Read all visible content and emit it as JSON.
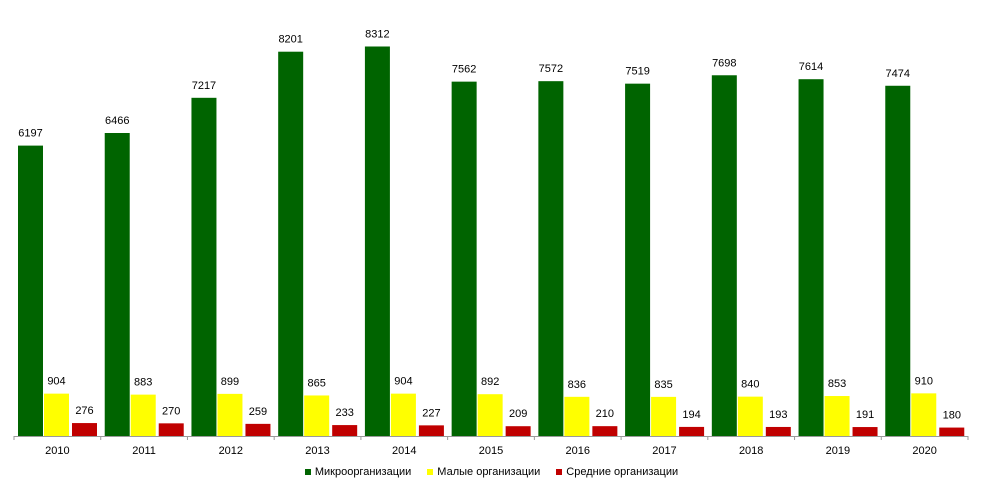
{
  "chart_data": {
    "type": "bar",
    "categories": [
      "2010",
      "2011",
      "2012",
      "2013",
      "2014",
      "2015",
      "2016",
      "2017",
      "2018",
      "2019",
      "2020"
    ],
    "series": [
      {
        "name": "Микроорганизации",
        "color": "#006400",
        "values": [
          6197,
          6466,
          7217,
          8201,
          8312,
          7562,
          7572,
          7519,
          7698,
          7614,
          7474
        ]
      },
      {
        "name": "Малые организации",
        "color": "#ffff00",
        "values": [
          904,
          883,
          899,
          865,
          904,
          892,
          836,
          835,
          840,
          853,
          910
        ]
      },
      {
        "name": "Средние организации",
        "color": "#c00000",
        "values": [
          276,
          270,
          259,
          233,
          227,
          209,
          210,
          194,
          193,
          191,
          180
        ]
      }
    ],
    "ylim": [
      0,
      8600
    ],
    "grid": false,
    "legend_position": "bottom"
  }
}
